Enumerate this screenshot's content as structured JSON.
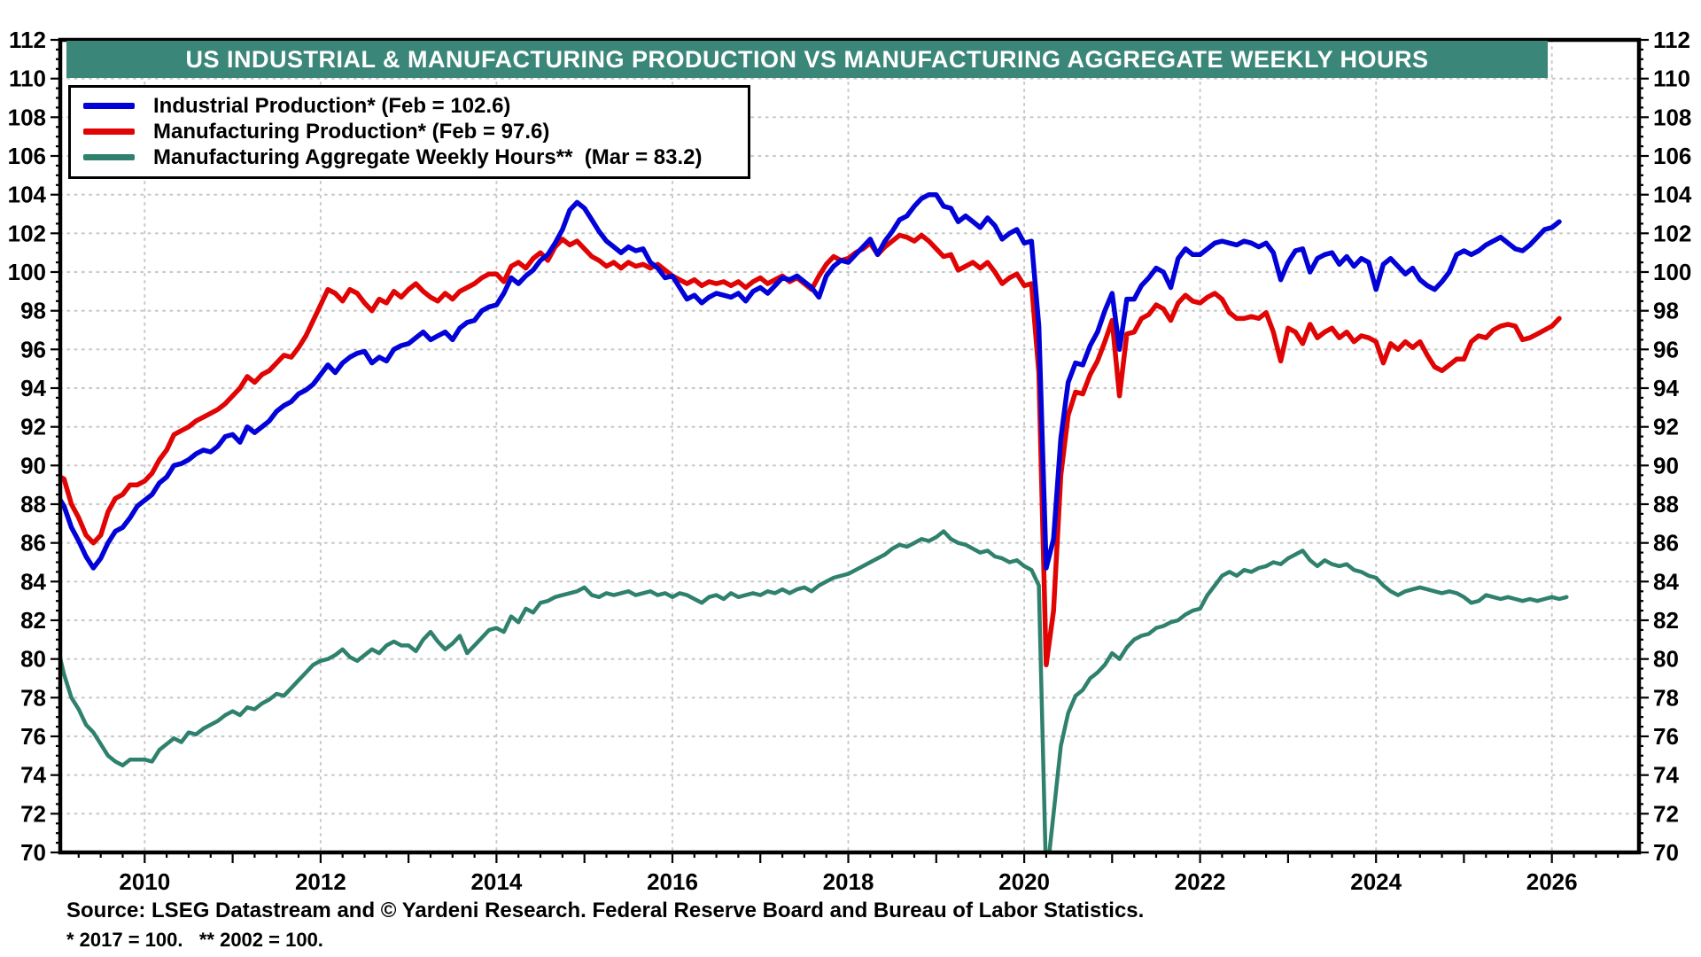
{
  "title_bar": {
    "text": "US INDUSTRIAL & MANUFACTURING PRODUCTION VS MANUFACTURING AGGREGATE WEEKLY HOURS",
    "bg_color": "#3A8678",
    "text_color": "#FFFFFF"
  },
  "legend": {
    "items": [
      {
        "label": "Industrial Production* (Feb = 102.6)"
      },
      {
        "label": "Manufacturing Production* (Feb = 97.6)"
      },
      {
        "label": "Manufacturing Aggregate Weekly Hours**  (Mar = 83.2)"
      }
    ]
  },
  "footer": {
    "source": "Source: LSEG Datastream and © Yardeni Research. Federal Reserve Board and Bureau of Labor Statistics.",
    "footnote": "* 2017 = 100.   ** 2002 = 100."
  },
  "chart_data": {
    "type": "line",
    "title": "US INDUSTRIAL & MANUFACTURING PRODUCTION VS MANUFACTURING AGGREGATE WEEKLY HOURS",
    "xlabel": "",
    "ylabel": "",
    "xlim": [
      2009.04,
      2026.99
    ],
    "ylim": [
      70,
      112
    ],
    "x_ticks": [
      2010,
      2012,
      2014,
      2016,
      2018,
      2020,
      2022,
      2024,
      2026
    ],
    "y_tick_step": 2,
    "y_minor_step": 0.5,
    "x_minor_step": 0.25,
    "grid": true,
    "grid_color": "#C9C9C9",
    "legend_position": "top-left",
    "x_start": 2009.0,
    "x_step": 0.0833333,
    "series": [
      {
        "name": "Industrial Production",
        "label": "Industrial Production* (Feb = 102.6)",
        "color": "#0202D8",
        "latest_month": "Feb",
        "latest_value": 102.6,
        "values": [
          88.5,
          87.9,
          86.8,
          86.1,
          85.3,
          84.7,
          85.2,
          86.0,
          86.6,
          86.8,
          87.3,
          87.9,
          88.2,
          88.5,
          89.1,
          89.4,
          90.0,
          90.1,
          90.3,
          90.6,
          90.8,
          90.7,
          91.0,
          91.5,
          91.6,
          91.2,
          92.0,
          91.7,
          92.0,
          92.3,
          92.8,
          93.1,
          93.3,
          93.7,
          93.9,
          94.2,
          94.7,
          95.2,
          94.8,
          95.3,
          95.6,
          95.8,
          95.9,
          95.3,
          95.6,
          95.4,
          96.0,
          96.2,
          96.3,
          96.6,
          96.9,
          96.5,
          96.7,
          96.9,
          96.5,
          97.1,
          97.4,
          97.5,
          98.0,
          98.2,
          98.3,
          98.9,
          99.7,
          99.4,
          99.8,
          100.1,
          100.6,
          100.9,
          101.5,
          102.2,
          103.2,
          103.6,
          103.3,
          102.7,
          102.1,
          101.6,
          101.3,
          101.0,
          101.3,
          101.1,
          101.2,
          100.5,
          100.2,
          99.7,
          99.8,
          99.2,
          98.6,
          98.8,
          98.4,
          98.7,
          98.9,
          98.8,
          98.7,
          98.9,
          98.5,
          99.0,
          99.2,
          98.9,
          99.3,
          99.7,
          99.6,
          99.8,
          99.5,
          99.2,
          98.7,
          99.8,
          100.3,
          100.6,
          100.5,
          100.9,
          101.3,
          101.7,
          100.9,
          101.6,
          102.1,
          102.7,
          102.9,
          103.4,
          103.8,
          104.0,
          104.0,
          103.4,
          103.3,
          102.6,
          102.9,
          102.6,
          102.3,
          102.8,
          102.4,
          101.7,
          102.0,
          102.2,
          101.5,
          101.6,
          97.2,
          84.7,
          86.2,
          91.4,
          94.3,
          95.3,
          95.2,
          96.2,
          96.9,
          98.0,
          98.9,
          96.0,
          98.6,
          98.6,
          99.3,
          99.7,
          100.2,
          100.0,
          99.2,
          100.7,
          101.2,
          100.9,
          100.9,
          101.2,
          101.5,
          101.6,
          101.5,
          101.4,
          101.6,
          101.5,
          101.3,
          101.5,
          101.0,
          99.6,
          100.5,
          101.1,
          101.2,
          100.0,
          100.7,
          100.9,
          101.0,
          100.4,
          100.8,
          100.3,
          100.7,
          100.5,
          99.1,
          100.4,
          100.7,
          100.3,
          99.9,
          100.2,
          99.6,
          99.3,
          99.1,
          99.5,
          100.0,
          100.9,
          101.1,
          100.9,
          101.1,
          101.4,
          101.6,
          101.8,
          101.5,
          101.2,
          101.1,
          101.4,
          101.8,
          102.2,
          102.3,
          102.6
        ]
      },
      {
        "name": "Manufacturing Production",
        "label": "Manufacturing Production* (Feb = 97.6)",
        "color": "#E00404",
        "latest_month": "Feb",
        "latest_value": 97.6,
        "values": [
          89.5,
          89.3,
          88.0,
          87.3,
          86.4,
          86.0,
          86.4,
          87.6,
          88.3,
          88.5,
          89.0,
          89.0,
          89.2,
          89.6,
          90.3,
          90.8,
          91.6,
          91.8,
          92.0,
          92.3,
          92.5,
          92.7,
          92.9,
          93.2,
          93.6,
          94.0,
          94.6,
          94.3,
          94.7,
          94.9,
          95.3,
          95.7,
          95.6,
          96.1,
          96.7,
          97.5,
          98.3,
          99.1,
          98.9,
          98.5,
          99.1,
          98.9,
          98.4,
          98.0,
          98.6,
          98.4,
          99.0,
          98.7,
          99.1,
          99.4,
          99.0,
          98.7,
          98.5,
          98.9,
          98.6,
          99.0,
          99.2,
          99.4,
          99.7,
          99.9,
          99.9,
          99.5,
          100.3,
          100.5,
          100.2,
          100.7,
          101.0,
          100.6,
          101.3,
          101.7,
          101.4,
          101.6,
          101.2,
          100.8,
          100.6,
          100.3,
          100.5,
          100.2,
          100.5,
          100.3,
          100.4,
          100.2,
          100.4,
          100.1,
          99.8,
          99.6,
          99.4,
          99.6,
          99.3,
          99.5,
          99.4,
          99.5,
          99.3,
          99.5,
          99.2,
          99.5,
          99.7,
          99.4,
          99.6,
          99.8,
          99.5,
          99.7,
          99.4,
          99.1,
          99.8,
          100.4,
          100.8,
          100.6,
          100.7,
          101.0,
          101.2,
          101.5,
          100.9,
          101.3,
          101.6,
          101.9,
          101.8,
          101.6,
          101.9,
          101.6,
          101.2,
          100.8,
          100.9,
          100.1,
          100.3,
          100.5,
          100.2,
          100.5,
          100.0,
          99.4,
          99.7,
          99.9,
          99.3,
          99.4,
          94.8,
          79.7,
          82.5,
          89.5,
          92.6,
          93.8,
          93.7,
          94.7,
          95.4,
          96.4,
          97.5,
          93.6,
          96.8,
          96.9,
          97.6,
          97.8,
          98.3,
          98.1,
          97.5,
          98.4,
          98.8,
          98.5,
          98.4,
          98.7,
          98.9,
          98.6,
          97.9,
          97.6,
          97.6,
          97.7,
          97.6,
          97.9,
          96.9,
          95.4,
          97.1,
          96.9,
          96.3,
          97.3,
          96.6,
          96.9,
          97.1,
          96.6,
          96.9,
          96.4,
          96.7,
          96.6,
          96.4,
          95.3,
          96.3,
          96.0,
          96.4,
          96.1,
          96.4,
          95.7,
          95.1,
          94.9,
          95.2,
          95.5,
          95.5,
          96.4,
          96.7,
          96.6,
          97.0,
          97.2,
          97.3,
          97.2,
          96.5,
          96.6,
          96.8,
          97.0,
          97.2,
          97.6
        ]
      },
      {
        "name": "Manufacturing Aggregate Weekly Hours",
        "label": "Manufacturing Aggregate Weekly Hours**  (Mar = 83.2)",
        "color": "#2F816E",
        "latest_month": "Mar",
        "latest_value": 83.2,
        "values": [
          80.8,
          79.2,
          78.0,
          77.4,
          76.6,
          76.2,
          75.6,
          75.0,
          74.7,
          74.5,
          74.8,
          74.8,
          74.8,
          74.7,
          75.3,
          75.6,
          75.9,
          75.7,
          76.2,
          76.1,
          76.4,
          76.6,
          76.8,
          77.1,
          77.3,
          77.1,
          77.5,
          77.4,
          77.7,
          77.9,
          78.2,
          78.1,
          78.5,
          78.9,
          79.3,
          79.7,
          79.9,
          80.0,
          80.2,
          80.5,
          80.1,
          79.9,
          80.2,
          80.5,
          80.3,
          80.7,
          80.9,
          80.7,
          80.7,
          80.4,
          81.0,
          81.4,
          80.9,
          80.5,
          80.8,
          81.2,
          80.3,
          80.7,
          81.1,
          81.5,
          81.6,
          81.4,
          82.2,
          81.9,
          82.6,
          82.4,
          82.9,
          83.0,
          83.2,
          83.3,
          83.4,
          83.5,
          83.7,
          83.3,
          83.2,
          83.4,
          83.3,
          83.4,
          83.5,
          83.3,
          83.4,
          83.5,
          83.3,
          83.4,
          83.2,
          83.4,
          83.3,
          83.1,
          82.9,
          83.2,
          83.3,
          83.1,
          83.4,
          83.2,
          83.3,
          83.4,
          83.3,
          83.5,
          83.4,
          83.6,
          83.4,
          83.6,
          83.7,
          83.5,
          83.8,
          84.0,
          84.2,
          84.3,
          84.4,
          84.6,
          84.8,
          85.0,
          85.2,
          85.4,
          85.7,
          85.9,
          85.8,
          86.0,
          86.2,
          86.1,
          86.3,
          86.6,
          86.2,
          86.0,
          85.9,
          85.7,
          85.5,
          85.6,
          85.3,
          85.2,
          85.0,
          85.1,
          84.8,
          84.6,
          83.8,
          68.5,
          72.0,
          75.5,
          77.2,
          78.1,
          78.4,
          79.0,
          79.3,
          79.7,
          80.3,
          80.0,
          80.6,
          81.0,
          81.2,
          81.3,
          81.6,
          81.7,
          81.9,
          82.0,
          82.3,
          82.5,
          82.6,
          83.3,
          83.8,
          84.3,
          84.5,
          84.3,
          84.6,
          84.5,
          84.7,
          84.8,
          85.0,
          84.9,
          85.2,
          85.4,
          85.6,
          85.1,
          84.8,
          85.1,
          84.9,
          84.8,
          84.9,
          84.6,
          84.5,
          84.3,
          84.2,
          83.8,
          83.5,
          83.3,
          83.5,
          83.6,
          83.7,
          83.6,
          83.5,
          83.4,
          83.5,
          83.4,
          83.2,
          82.9,
          83.0,
          83.3,
          83.2,
          83.1,
          83.2,
          83.1,
          83.0,
          83.1,
          83.0,
          83.1,
          83.2,
          83.1,
          83.2
        ]
      }
    ]
  }
}
